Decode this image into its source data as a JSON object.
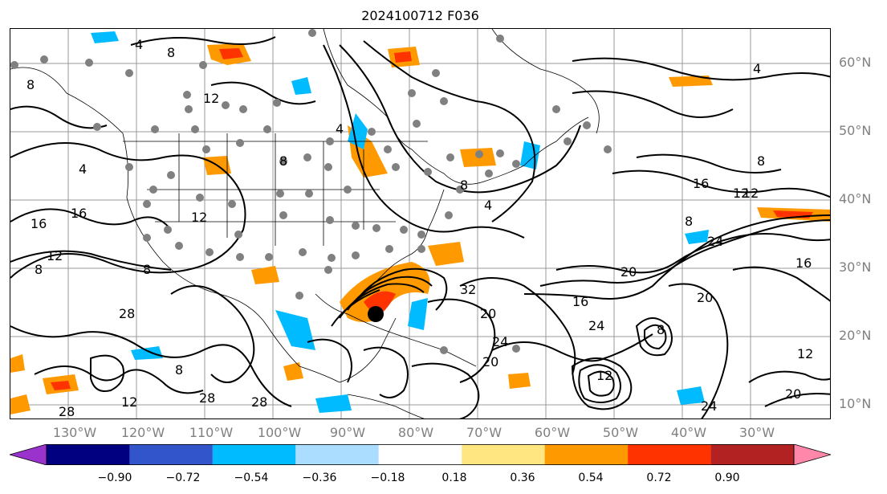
{
  "title": "2024100712 F036",
  "lat_labels": [
    "60°N",
    "50°N",
    "40°N",
    "30°N",
    "20°N",
    "10°N"
  ],
  "lon_labels": [
    "130°W",
    "120°W",
    "110°W",
    "100°W",
    "90°W",
    "80°W",
    "70°W",
    "60°W",
    "50°W",
    "40°W",
    "30°W"
  ],
  "contour_labels": [
    "4",
    "8",
    "8",
    "12",
    "4",
    "8",
    "4",
    "4",
    "8",
    "16",
    "12",
    "16",
    "12",
    "8",
    "8",
    "28",
    "8",
    "12",
    "28",
    "32",
    "20",
    "16",
    "20",
    "24",
    "20",
    "24",
    "16",
    "12",
    "16",
    "20",
    "24",
    "8",
    "12",
    "20",
    "12",
    "28",
    "24",
    "28",
    "8",
    "12",
    "8",
    "4"
  ],
  "colorbar": {
    "ticks": [
      "−0.90",
      "−0.72",
      "−0.54",
      "−0.36",
      "−0.18",
      "0.18",
      "0.36",
      "0.54",
      "0.72",
      "0.90"
    ],
    "colors": [
      "#9933cc",
      "#000080",
      "#3355cc",
      "#00bbff",
      "#aaddff",
      "#ffffff",
      "#ffe680",
      "#ff9900",
      "#ff3300",
      "#b22222",
      "#ff88aa"
    ]
  },
  "storm_marker": "hurricane-center"
}
